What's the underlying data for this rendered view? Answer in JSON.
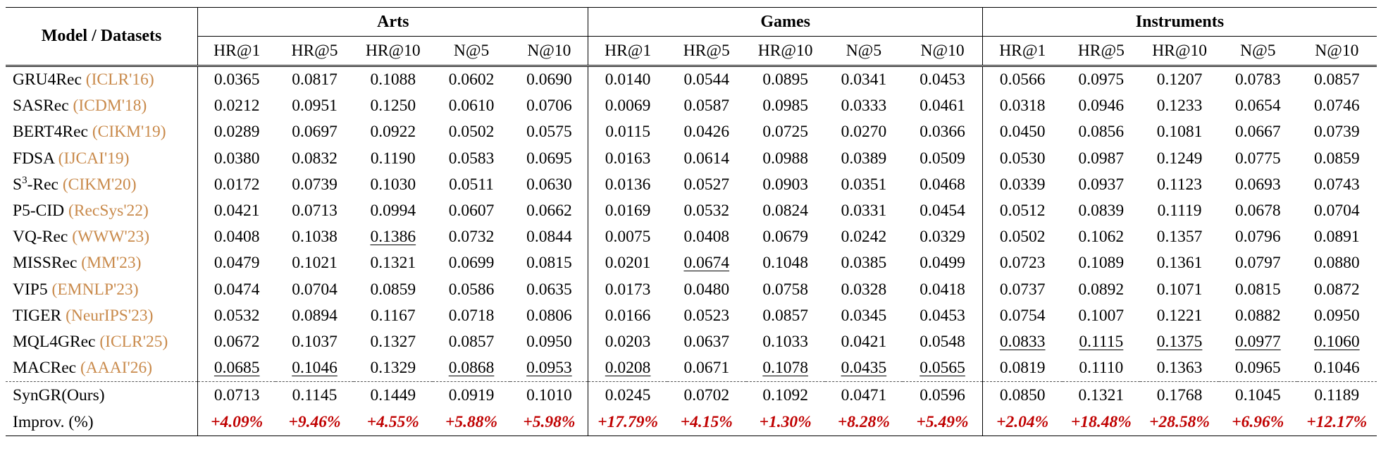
{
  "header": {
    "model_col": "Model / Datasets",
    "groups": [
      "Arts",
      "Games",
      "Instruments"
    ],
    "metrics": [
      "HR@1",
      "HR@5",
      "HR@10",
      "N@5",
      "N@10"
    ]
  },
  "rows": [
    {
      "name": "GRU4Rec",
      "venue": "(ICLR'16)",
      "values": [
        "0.0365",
        "0.0817",
        "0.1088",
        "0.0602",
        "0.0690",
        "0.0140",
        "0.0544",
        "0.0895",
        "0.0341",
        "0.0453",
        "0.0566",
        "0.0975",
        "0.1207",
        "0.0783",
        "0.0857"
      ],
      "underline": []
    },
    {
      "name": "SASRec",
      "venue": "(ICDM'18)",
      "values": [
        "0.0212",
        "0.0951",
        "0.1250",
        "0.0610",
        "0.0706",
        "0.0069",
        "0.0587",
        "0.0985",
        "0.0333",
        "0.0461",
        "0.0318",
        "0.0946",
        "0.1233",
        "0.0654",
        "0.0746"
      ],
      "underline": []
    },
    {
      "name": "BERT4Rec",
      "venue": "(CIKM'19)",
      "values": [
        "0.0289",
        "0.0697",
        "0.0922",
        "0.0502",
        "0.0575",
        "0.0115",
        "0.0426",
        "0.0725",
        "0.0270",
        "0.0366",
        "0.0450",
        "0.0856",
        "0.1081",
        "0.0667",
        "0.0739"
      ],
      "underline": []
    },
    {
      "name": "FDSA",
      "venue": "(IJCAI'19)",
      "values": [
        "0.0380",
        "0.0832",
        "0.1190",
        "0.0583",
        "0.0695",
        "0.0163",
        "0.0614",
        "0.0988",
        "0.0389",
        "0.0509",
        "0.0530",
        "0.0987",
        "0.1249",
        "0.0775",
        "0.0859"
      ],
      "underline": []
    },
    {
      "name": "S",
      "sup": "3",
      "name_suffix": "-Rec",
      "venue": "(CIKM'20)",
      "values": [
        "0.0172",
        "0.0739",
        "0.1030",
        "0.0511",
        "0.0630",
        "0.0136",
        "0.0527",
        "0.0903",
        "0.0351",
        "0.0468",
        "0.0339",
        "0.0937",
        "0.1123",
        "0.0693",
        "0.0743"
      ],
      "underline": []
    },
    {
      "name": "P5-CID",
      "venue": "(RecSys'22)",
      "values": [
        "0.0421",
        "0.0713",
        "0.0994",
        "0.0607",
        "0.0662",
        "0.0169",
        "0.0532",
        "0.0824",
        "0.0331",
        "0.0454",
        "0.0512",
        "0.0839",
        "0.1119",
        "0.0678",
        "0.0704"
      ],
      "underline": []
    },
    {
      "name": "VQ-Rec",
      "venue": "(WWW'23)",
      "values": [
        "0.0408",
        "0.1038",
        "0.1386",
        "0.0732",
        "0.0844",
        "0.0075",
        "0.0408",
        "0.0679",
        "0.0242",
        "0.0329",
        "0.0502",
        "0.1062",
        "0.1357",
        "0.0796",
        "0.0891"
      ],
      "underline": [
        2
      ]
    },
    {
      "name": "MISSRec",
      "venue": "(MM'23)",
      "values": [
        "0.0479",
        "0.1021",
        "0.1321",
        "0.0699",
        "0.0815",
        "0.0201",
        "0.0674",
        "0.1048",
        "0.0385",
        "0.0499",
        "0.0723",
        "0.1089",
        "0.1361",
        "0.0797",
        "0.0880"
      ],
      "underline": [
        6
      ]
    },
    {
      "name": "VIP5",
      "venue": "(EMNLP'23)",
      "values": [
        "0.0474",
        "0.0704",
        "0.0859",
        "0.0586",
        "0.0635",
        "0.0173",
        "0.0480",
        "0.0758",
        "0.0328",
        "0.0418",
        "0.0737",
        "0.0892",
        "0.1071",
        "0.0815",
        "0.0872"
      ],
      "underline": []
    },
    {
      "name": "TIGER",
      "venue": "(NeurIPS'23)",
      "values": [
        "0.0532",
        "0.0894",
        "0.1167",
        "0.0718",
        "0.0806",
        "0.0166",
        "0.0523",
        "0.0857",
        "0.0345",
        "0.0453",
        "0.0754",
        "0.1007",
        "0.1221",
        "0.0882",
        "0.0950"
      ],
      "underline": []
    },
    {
      "name": "MQL4GRec",
      "venue": "(ICLR'25)",
      "values": [
        "0.0672",
        "0.1037",
        "0.1327",
        "0.0857",
        "0.0950",
        "0.0203",
        "0.0637",
        "0.1033",
        "0.0421",
        "0.0548",
        "0.0833",
        "0.1115",
        "0.1375",
        "0.0977",
        "0.1060"
      ],
      "underline": [
        10,
        11,
        12,
        13,
        14
      ]
    },
    {
      "name": "MACRec",
      "venue": "(AAAI'26)",
      "values": [
        "0.0685",
        "0.1046",
        "0.1329",
        "0.0868",
        "0.0953",
        "0.0208",
        "0.0671",
        "0.1078",
        "0.0435",
        "0.0565",
        "0.0819",
        "0.1110",
        "0.1363",
        "0.0965",
        "0.1046"
      ],
      "underline": [
        0,
        1,
        3,
        4,
        5,
        7,
        8,
        9
      ]
    }
  ],
  "ours": {
    "name": "SynGR(Ours)",
    "values": [
      "0.0713",
      "0.1145",
      "0.1449",
      "0.0919",
      "0.1010",
      "0.0245",
      "0.0702",
      "0.1092",
      "0.0471",
      "0.0596",
      "0.0850",
      "0.1321",
      "0.1768",
      "0.1045",
      "0.1189"
    ]
  },
  "improv": {
    "name": "Improv. (%)",
    "values": [
      "+4.09%",
      "+9.46%",
      "+4.55%",
      "+5.88%",
      "+5.98%",
      "+17.79%",
      "+4.15%",
      "+1.30%",
      "+8.28%",
      "+5.49%",
      "+2.04%",
      "+18.48%",
      "+28.58%",
      "+6.96%",
      "+12.17%"
    ]
  },
  "colors": {
    "venue": "#c98a4b",
    "improvement": "#c00000"
  }
}
